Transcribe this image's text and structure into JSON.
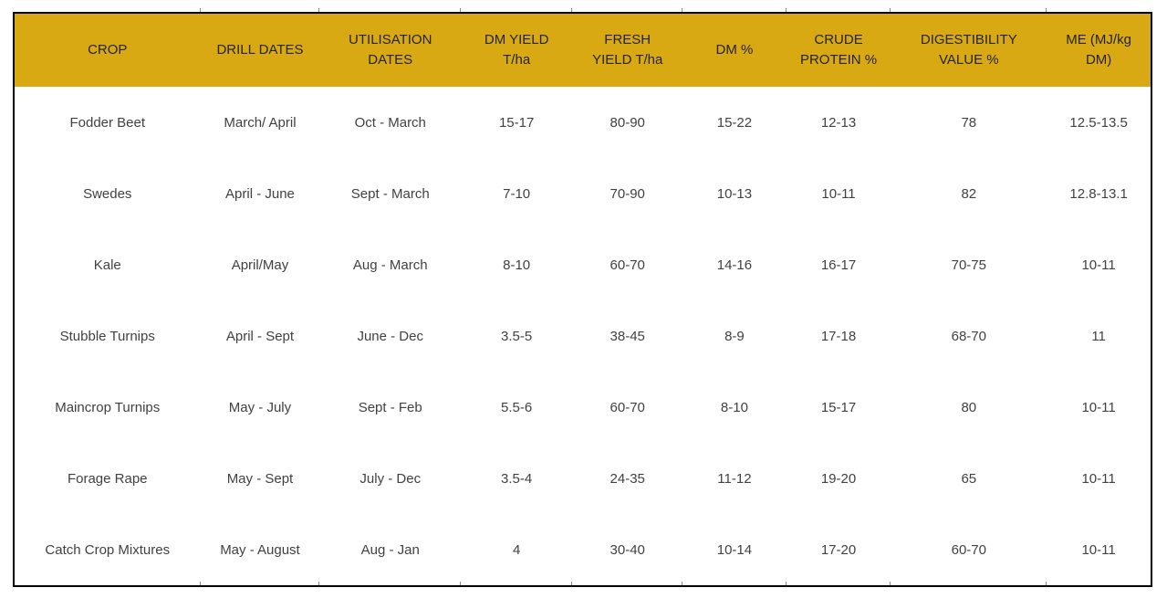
{
  "colors": {
    "header_bg": "#D8A912",
    "header_text": "#242424",
    "body_text": "#414141",
    "border": "#000000",
    "background": "#FFFFFF"
  },
  "table": {
    "columns": [
      {
        "label": "CROP"
      },
      {
        "label": "DRILL DATES"
      },
      {
        "label": "UTILISATION DATES"
      },
      {
        "label": "DM YIELD T/ha"
      },
      {
        "label": "FRESH YIELD T/ha"
      },
      {
        "label": "DM %"
      },
      {
        "label": "CRUDE PROTEIN %"
      },
      {
        "label": "DIGESTIBILITY VALUE %"
      },
      {
        "label": "ME (MJ/kg DM)"
      }
    ],
    "rows": [
      [
        "Fodder Beet",
        "March/ April",
        "Oct - March",
        "15-17",
        "80-90",
        "15-22",
        "12-13",
        "78",
        "12.5-13.5"
      ],
      [
        "Swedes",
        "April - June",
        "Sept - March",
        "7-10",
        "70-90",
        "10-13",
        "10-11",
        "82",
        "12.8-13.1"
      ],
      [
        "Kale",
        "April/May",
        "Aug - March",
        "8-10",
        "60-70",
        "14-16",
        "16-17",
        "70-75",
        "10-11"
      ],
      [
        "Stubble Turnips",
        "April - Sept",
        "June - Dec",
        "3.5-5",
        "38-45",
        "8-9",
        "17-18",
        "68-70",
        "11"
      ],
      [
        "Maincrop Turnips",
        "May - July",
        "Sept - Feb",
        "5.5-6",
        "60-70",
        "8-10",
        "15-17",
        "80",
        "10-11"
      ],
      [
        "Forage Rape",
        "May - Sept",
        "July - Dec",
        "3.5-4",
        "24-35",
        "11-12",
        "19-20",
        "65",
        "10-11"
      ],
      [
        "Catch Crop Mixtures",
        "May - August",
        "Aug - Jan",
        "4",
        "30-40",
        "10-14",
        "17-20",
        "60-70",
        "10-11"
      ]
    ]
  }
}
